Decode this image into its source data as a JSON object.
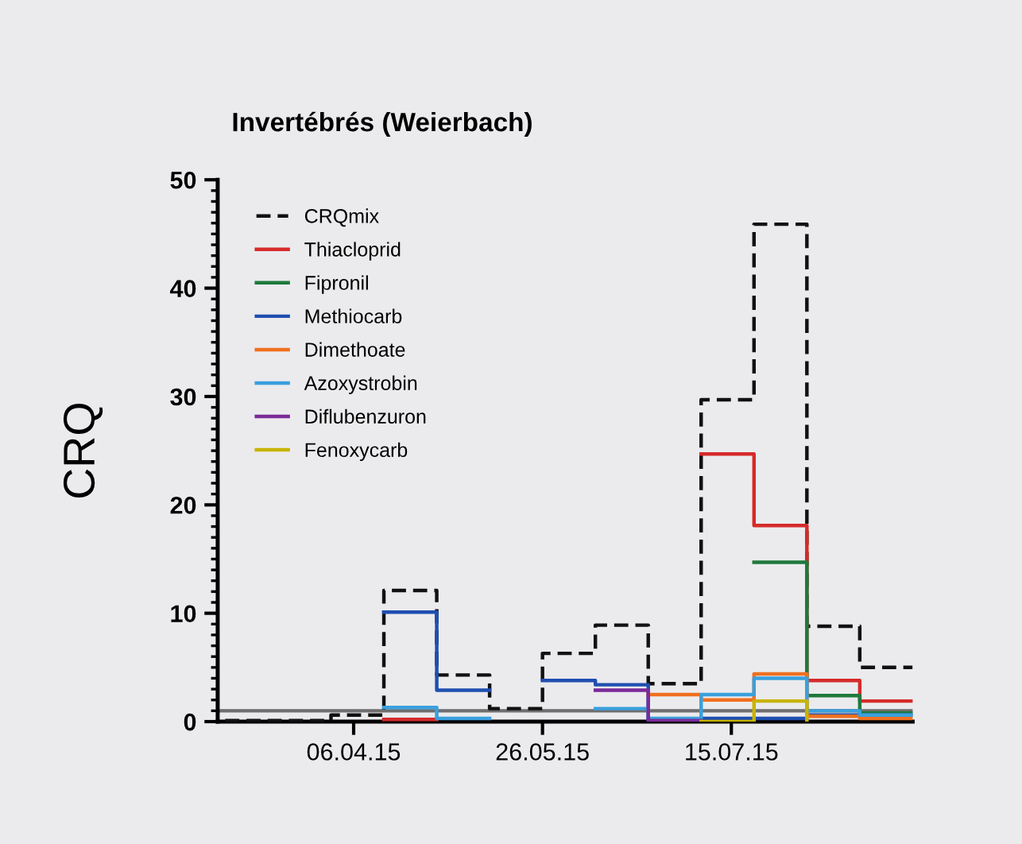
{
  "chart_data": {
    "type": "step",
    "title": "Invertébrés (Weierbach)",
    "ylabel": "CRQ",
    "x": [
      "2015-03-03",
      "2015-03-17",
      "2015-03-31",
      "2015-04-14",
      "2015-04-28",
      "2015-05-12",
      "2015-05-26",
      "2015-06-09",
      "2015-06-23",
      "2015-07-07",
      "2015-07-21",
      "2015-08-04",
      "2015-08-18",
      "2015-09-01"
    ],
    "xlim": [
      "2015-03-01",
      "2015-09-01"
    ],
    "xticks": [
      {
        "value": "2015-04-06",
        "label": "06.04.15"
      },
      {
        "value": "2015-05-26",
        "label": "26.05.15"
      },
      {
        "value": "2015-07-15",
        "label": "15.07.15"
      }
    ],
    "ylim": [
      0,
      50
    ],
    "yticks": [
      0,
      10,
      20,
      30,
      40,
      50
    ],
    "legend": "top left",
    "grid": false,
    "ref_lines": [
      {
        "axis": "y",
        "value": 1,
        "color": "#6e6e6e"
      }
    ],
    "series": [
      {
        "name": "CRQmix",
        "color": "#111111",
        "line_style": "dashed",
        "values": [
          0.1,
          0.1,
          0.6,
          12.1,
          4.3,
          1.2,
          6.3,
          8.9,
          3.5,
          29.7,
          45.9,
          8.8,
          5.0,
          5.0
        ]
      },
      {
        "name": "Thiacloprid",
        "color": "#d62a2a",
        "values": [
          null,
          null,
          null,
          0.2,
          null,
          null,
          null,
          null,
          null,
          24.7,
          18.1,
          3.8,
          1.9,
          1.9
        ]
      },
      {
        "name": "Fipronil",
        "color": "#1e7a3c",
        "values": [
          null,
          null,
          null,
          null,
          null,
          null,
          null,
          null,
          null,
          null,
          14.7,
          2.4,
          0.8,
          0.8
        ]
      },
      {
        "name": "Methiocarb",
        "color": "#1f4fb0",
        "values": [
          null,
          null,
          null,
          10.1,
          2.9,
          null,
          3.8,
          3.4,
          0.1,
          0.3,
          0.3,
          0.6,
          0.6,
          0.6
        ]
      },
      {
        "name": "Dimethoate",
        "color": "#f07020",
        "values": [
          null,
          null,
          null,
          null,
          null,
          null,
          null,
          null,
          2.5,
          2.0,
          4.4,
          0.5,
          0.3,
          0.3
        ]
      },
      {
        "name": "Azoxystrobin",
        "color": "#3aa0dd",
        "values": [
          null,
          null,
          null,
          1.3,
          0.3,
          null,
          null,
          1.2,
          0.3,
          2.5,
          4.0,
          1.0,
          0.6,
          0.6
        ]
      },
      {
        "name": "Diflubenzuron",
        "color": "#7a2a9a",
        "values": [
          null,
          null,
          null,
          null,
          null,
          null,
          null,
          2.9,
          0.1,
          0,
          null,
          null,
          null,
          null
        ]
      },
      {
        "name": "Fenoxycarb",
        "color": "#c8b400",
        "values": [
          null,
          null,
          null,
          null,
          null,
          null,
          null,
          null,
          null,
          0,
          1.9,
          0,
          null,
          null
        ]
      }
    ]
  }
}
